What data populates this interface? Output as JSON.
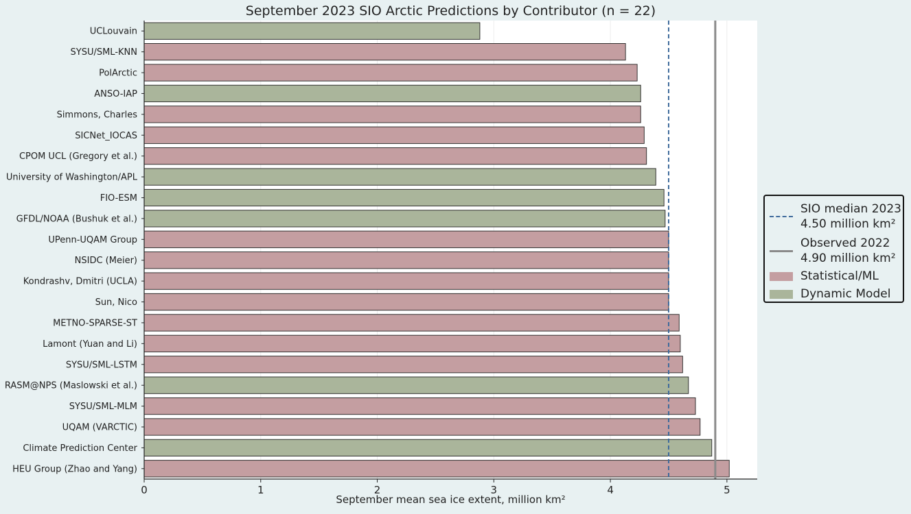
{
  "chart_data": {
    "type": "bar",
    "orientation": "horizontal",
    "title": "September 2023 SIO Arctic Predictions by Contributor (n = 22)",
    "xlabel": "September mean sea ice extent, million km²",
    "ylabel": "",
    "xlim": [
      0,
      5.26
    ],
    "xticks": [
      0,
      1,
      2,
      3,
      4,
      5
    ],
    "grid": "vertical",
    "legend_position": "right",
    "categories": [
      "UCLouvain",
      "SYSU/SML-KNN",
      "PolArctic",
      "ANSO-IAP",
      "Simmons, Charles",
      "SICNet_IOCAS",
      "CPOM UCL (Gregory et al.)",
      "University of Washington/APL",
      "FIO-ESM",
      "GFDL/NOAA (Bushuk et al.)",
      "UPenn-UQAM Group",
      "NSIDC (Meier)",
      "Kondrashv, Dmitri (UCLA)",
      "Sun, Nico",
      "METNO-SPARSE-ST",
      "Lamont (Yuan and Li)",
      "SYSU/SML-LSTM",
      "RASM@NPS (Maslowski et al.)",
      "SYSU/SML-MLM",
      "UQAM (VARCTIC)",
      "Climate Prediction Center",
      "HEU Group (Zhao and Yang)"
    ],
    "values": [
      2.88,
      4.13,
      4.23,
      4.26,
      4.26,
      4.29,
      4.31,
      4.39,
      4.46,
      4.47,
      4.5,
      4.5,
      4.5,
      4.5,
      4.59,
      4.6,
      4.62,
      4.67,
      4.73,
      4.77,
      4.87,
      5.02
    ],
    "method": [
      "Dynamic Model",
      "Statistical/ML",
      "Statistical/ML",
      "Dynamic Model",
      "Statistical/ML",
      "Statistical/ML",
      "Statistical/ML",
      "Dynamic Model",
      "Dynamic Model",
      "Dynamic Model",
      "Statistical/ML",
      "Statistical/ML",
      "Statistical/ML",
      "Statistical/ML",
      "Statistical/ML",
      "Statistical/ML",
      "Statistical/ML",
      "Dynamic Model",
      "Statistical/ML",
      "Statistical/ML",
      "Dynamic Model",
      "Statistical/ML"
    ],
    "reference_lines": [
      {
        "label_line1": "SIO median 2023",
        "label_line2": "4.50 million km²",
        "value": 4.5,
        "style": "dashed",
        "color": "#3e6a9c"
      },
      {
        "label_line1": "Observed 2022",
        "label_line2": "4.90 million km²",
        "value": 4.9,
        "style": "solid",
        "color": "#8a8a8a"
      }
    ],
    "legend": [
      {
        "label": "Statistical/ML",
        "color": "#c49ea1"
      },
      {
        "label": "Dynamic Model",
        "color": "#aab59b"
      }
    ]
  },
  "colors": {
    "background": "#e8f1f2",
    "plot_background": "#ffffff",
    "statistical": "#c49ea1",
    "dynamic": "#aab59b"
  }
}
